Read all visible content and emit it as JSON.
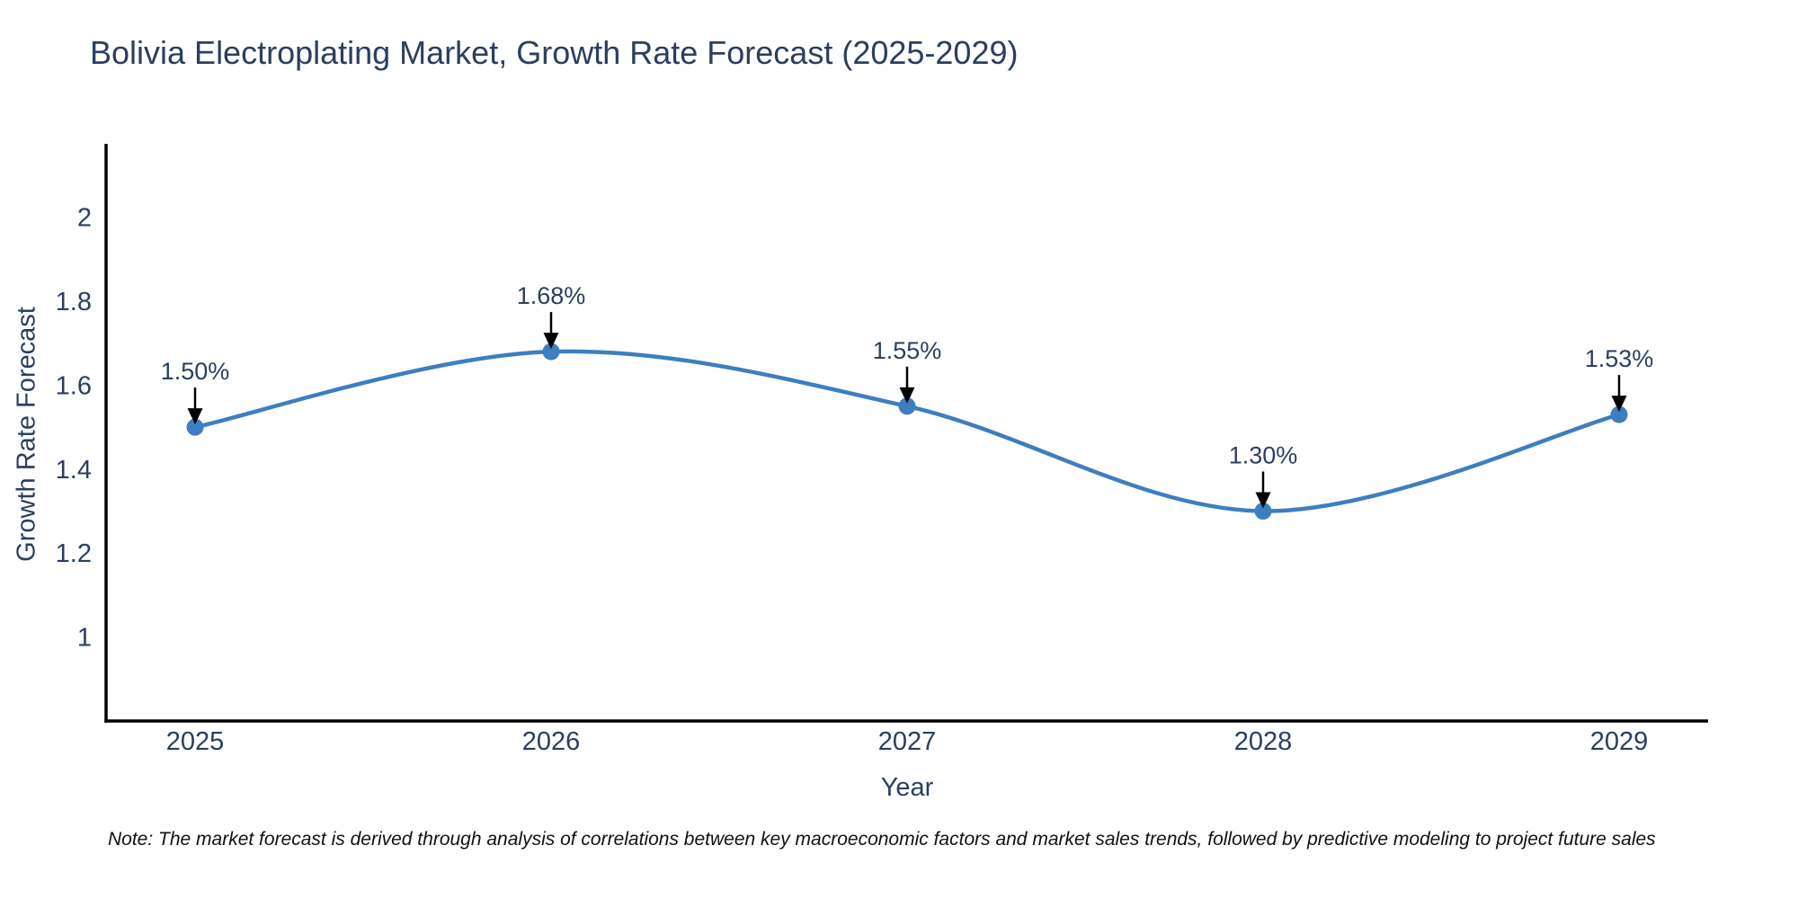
{
  "page": {
    "background": "#ffffff"
  },
  "colors": {
    "line": "#3d7ebf",
    "marker": "#3d7ebf",
    "axis": "#000000",
    "text": "#2a3f5f",
    "annotation_arrow": "#000000",
    "note_text": "#111111"
  },
  "note": "Note: The market forecast is derived through analysis of correlations between key macroeconomic factors and market sales trends, followed by predictive modeling to project future sales",
  "chart_data": {
    "type": "line",
    "title": "Bolivia Electroplating Market, Growth Rate Forecast (2025-2029)",
    "xlabel": "Year",
    "ylabel": "Growth Rate Forecast",
    "x": [
      2025,
      2026,
      2027,
      2028,
      2029
    ],
    "x_tick_labels": [
      "2025",
      "2026",
      "2027",
      "2028",
      "2029"
    ],
    "series": [
      {
        "name": "Growth Rate Forecast",
        "values": [
          1.5,
          1.68,
          1.55,
          1.3,
          1.53
        ]
      }
    ],
    "point_labels": [
      "1.50%",
      "1.68%",
      "1.55%",
      "1.30%",
      "1.53%"
    ],
    "y_ticks": [
      1,
      1.2,
      1.4,
      1.6,
      1.8,
      2
    ],
    "y_tick_labels": [
      "1",
      "1.2",
      "1.4",
      "1.6",
      "1.8",
      "2"
    ],
    "ylim": [
      0.8,
      2.175
    ],
    "xlim": [
      2024.75,
      2029.25
    ],
    "line_shape": "spline",
    "grid": false,
    "legend": "none"
  }
}
